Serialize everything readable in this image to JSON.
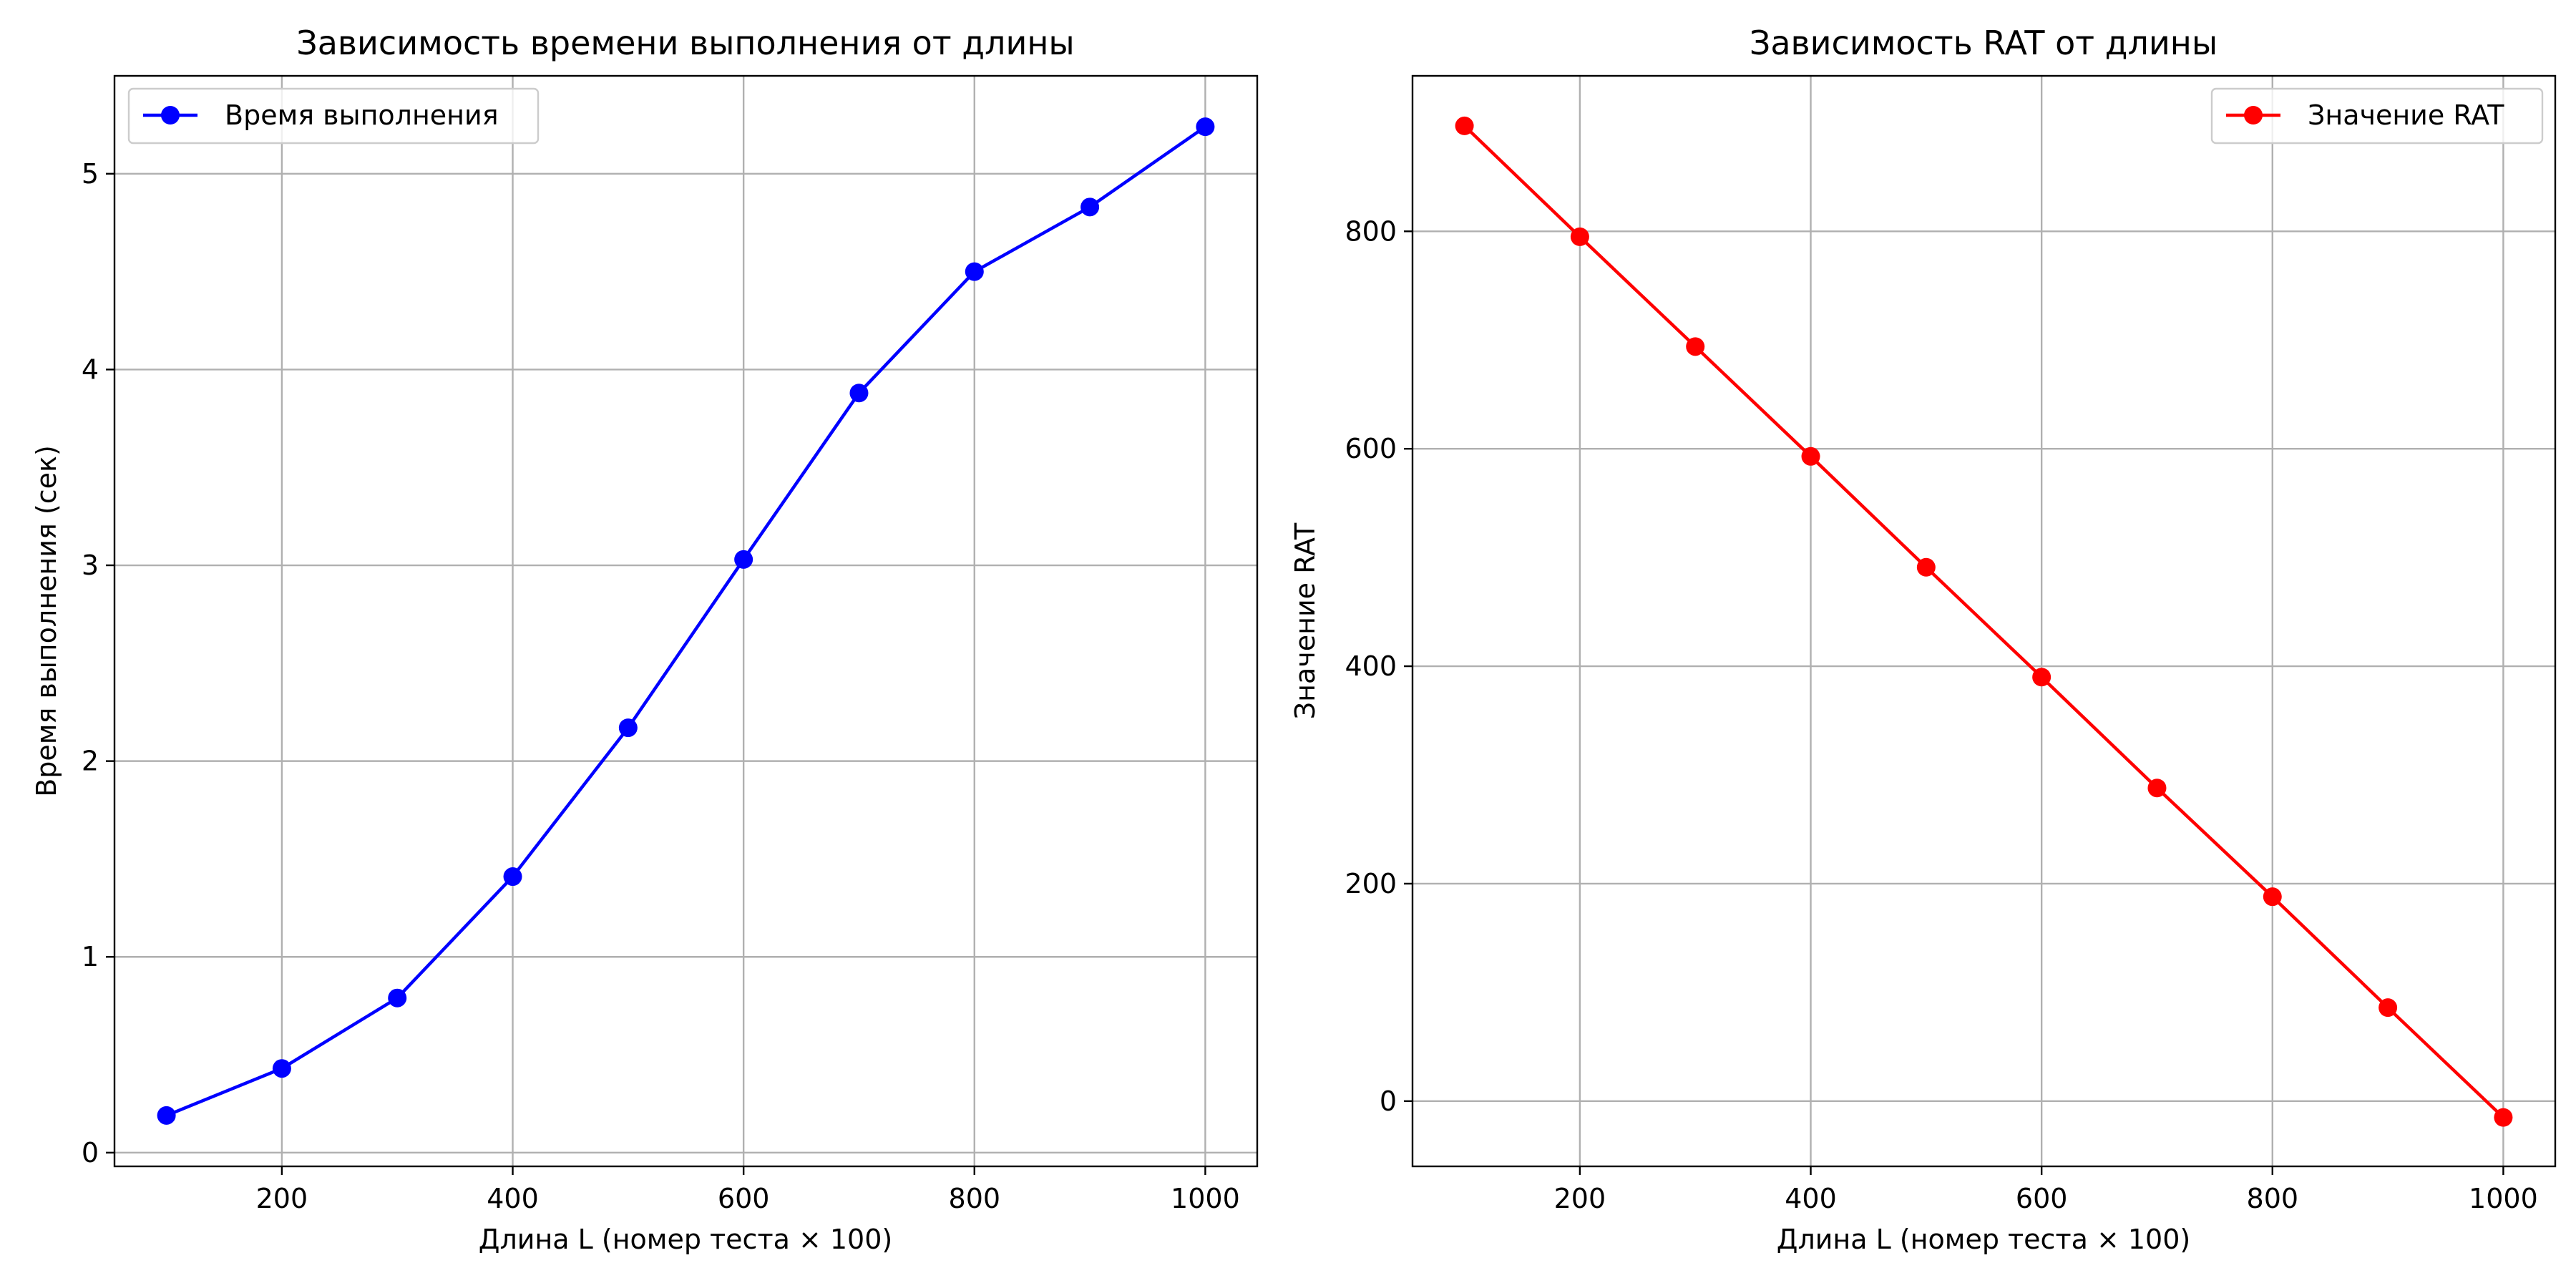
{
  "chart_data": [
    {
      "type": "line",
      "title": "Зависимость времени выполнения от длины",
      "xlabel": "Длина L (номер теста × 100)",
      "ylabel": "Время выполнения (сек)",
      "x": [
        100,
        200,
        300,
        400,
        500,
        600,
        700,
        800,
        900,
        1000
      ],
      "series": [
        {
          "name": "Время выполнения",
          "color": "#0000ff",
          "marker": "circle",
          "values": [
            0.19,
            0.43,
            0.79,
            1.41,
            2.17,
            3.03,
            3.88,
            4.5,
            4.83,
            5.24
          ]
        }
      ],
      "xlim": [
        55,
        1045
      ],
      "ylim": [
        -0.07,
        5.5
      ],
      "xticks": [
        200,
        400,
        600,
        800,
        1000
      ],
      "yticks": [
        0,
        1,
        2,
        3,
        4,
        5
      ],
      "xtick_labels": [
        "200",
        "400",
        "600",
        "800",
        "1000"
      ],
      "ytick_labels": [
        "0",
        "1",
        "2",
        "3",
        "4",
        "5"
      ],
      "grid": true,
      "legend": "upper-left"
    },
    {
      "type": "line",
      "title": "Зависимость RAT от длины",
      "xlabel": "Длина L (номер теста × 100)",
      "ylabel": "Значение RAT",
      "x": [
        100,
        200,
        300,
        400,
        500,
        600,
        700,
        800,
        900,
        1000
      ],
      "series": [
        {
          "name": "Значение RAT",
          "color": "#ff0000",
          "marker": "circle",
          "values": [
            897,
            795,
            694,
            593,
            491,
            390,
            288,
            188,
            86,
            -15
          ]
        }
      ],
      "xlim": [
        55,
        1045
      ],
      "ylim": [
        -60,
        943
      ],
      "xticks": [
        200,
        400,
        600,
        800,
        1000
      ],
      "yticks": [
        0,
        200,
        400,
        600,
        800
      ],
      "xtick_labels": [
        "200",
        "400",
        "600",
        "800",
        "1000"
      ],
      "ytick_labels": [
        "0",
        "200",
        "400",
        "600",
        "800"
      ],
      "grid": true,
      "legend": "upper-right"
    }
  ]
}
